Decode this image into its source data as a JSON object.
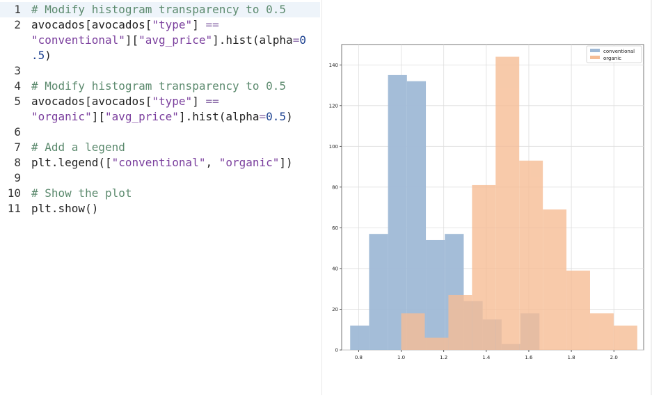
{
  "editor": {
    "lines": [
      {
        "num": "1",
        "parts": [
          {
            "t": "# Modify histogram transparency to 0.5",
            "c": "c"
          }
        ]
      },
      {
        "num": "2",
        "parts": [
          {
            "t": "avocados[avocados[",
            "c": ""
          },
          {
            "t": "\"type\"",
            "c": "s"
          },
          {
            "t": "] ",
            "c": ""
          },
          {
            "t": "==",
            "c": "o"
          }
        ]
      },
      {
        "num": "",
        "parts": [
          {
            "t": "\"conventional\"",
            "c": "s"
          },
          {
            "t": "][",
            "c": ""
          },
          {
            "t": "\"avg_price\"",
            "c": "s"
          },
          {
            "t": "].hist(alpha",
            "c": ""
          },
          {
            "t": "=",
            "c": "o"
          },
          {
            "t": "0",
            "c": "n"
          }
        ]
      },
      {
        "num": "",
        "parts": [
          {
            "t": ".5",
            "c": "n"
          },
          {
            "t": ")",
            "c": ""
          }
        ]
      },
      {
        "num": "3",
        "parts": []
      },
      {
        "num": "4",
        "parts": [
          {
            "t": "# Modify histogram transparency to 0.5",
            "c": "c"
          }
        ]
      },
      {
        "num": "5",
        "parts": [
          {
            "t": "avocados[avocados[",
            "c": ""
          },
          {
            "t": "\"type\"",
            "c": "s"
          },
          {
            "t": "] ",
            "c": ""
          },
          {
            "t": "==",
            "c": "o"
          }
        ]
      },
      {
        "num": "",
        "parts": [
          {
            "t": "\"organic\"",
            "c": "s"
          },
          {
            "t": "][",
            "c": ""
          },
          {
            "t": "\"avg_price\"",
            "c": "s"
          },
          {
            "t": "].hist(alpha",
            "c": ""
          },
          {
            "t": "=",
            "c": "o"
          },
          {
            "t": "0.5",
            "c": "n"
          },
          {
            "t": ")",
            "c": ""
          }
        ]
      },
      {
        "num": "6",
        "parts": []
      },
      {
        "num": "7",
        "parts": [
          {
            "t": "# Add a legend",
            "c": "c"
          }
        ]
      },
      {
        "num": "8",
        "parts": [
          {
            "t": "plt.legend([",
            "c": ""
          },
          {
            "t": "\"conventional\"",
            "c": "s"
          },
          {
            "t": ", ",
            "c": ""
          },
          {
            "t": "\"organic\"",
            "c": "s"
          },
          {
            "t": "])",
            "c": ""
          }
        ]
      },
      {
        "num": "9",
        "parts": []
      },
      {
        "num": "10",
        "parts": [
          {
            "t": "# Show the plot",
            "c": "c"
          }
        ]
      },
      {
        "num": "11",
        "parts": [
          {
            "t": "plt.show()",
            "c": ""
          }
        ]
      }
    ]
  },
  "chart_data": {
    "type": "bar",
    "xlim": [
      0.72,
      2.14
    ],
    "ylim": [
      0,
      150
    ],
    "xticks": [
      "0.8",
      "1.0",
      "1.2",
      "1.4",
      "1.6",
      "1.8",
      "2.0"
    ],
    "yticks": [
      "0",
      "20",
      "40",
      "60",
      "80",
      "100",
      "120",
      "140"
    ],
    "grid": true,
    "legend": {
      "position": "top-right",
      "entries": [
        "conventional",
        "organic"
      ]
    },
    "series": [
      {
        "name": "conventional",
        "color": "#9fb9d6",
        "bins": [
          0.76,
          0.849,
          0.938,
          1.027,
          1.116,
          1.205,
          1.294,
          1.383,
          1.472,
          1.561,
          1.65
        ],
        "values": [
          12,
          57,
          135,
          132,
          54,
          57,
          24,
          15,
          3,
          18
        ]
      },
      {
        "name": "organic",
        "color": "#f5bd96",
        "bins": [
          1.0,
          1.111,
          1.222,
          1.333,
          1.444,
          1.555,
          1.666,
          1.777,
          1.888,
          1.999,
          2.11
        ],
        "values": [
          18,
          6,
          27,
          81,
          144,
          93,
          69,
          39,
          18,
          12
        ]
      }
    ]
  }
}
